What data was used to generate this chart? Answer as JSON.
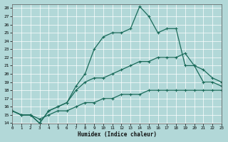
{
  "xlabel": "Humidex (Indice chaleur)",
  "bg_color": "#b2d8d8",
  "grid_color": "#c8e8e8",
  "line_color": "#1a6b5a",
  "xlim": [
    0,
    23
  ],
  "ylim": [
    14,
    28.5
  ],
  "xticks": [
    0,
    1,
    2,
    3,
    4,
    5,
    6,
    7,
    8,
    9,
    10,
    11,
    12,
    13,
    14,
    15,
    16,
    17,
    18,
    19,
    20,
    21,
    22,
    23
  ],
  "yticks": [
    14,
    15,
    16,
    17,
    18,
    19,
    20,
    21,
    22,
    23,
    24,
    25,
    26,
    27,
    28
  ],
  "line1_x": [
    0,
    1,
    2,
    3,
    4,
    5,
    6,
    7,
    8,
    9,
    10,
    11,
    12,
    13,
    14,
    15,
    16,
    17,
    18,
    19,
    20,
    21,
    22,
    23
  ],
  "line1_y": [
    15.5,
    15.0,
    15.0,
    14.0,
    15.5,
    16.0,
    16.5,
    18.5,
    20.0,
    23.0,
    24.5,
    25.0,
    25.0,
    25.5,
    28.2,
    27.0,
    25.0,
    25.5,
    25.5,
    21.0,
    21.0,
    19.0,
    19.0,
    18.5
  ],
  "line2_x": [
    0,
    1,
    2,
    3,
    4,
    5,
    6,
    7,
    8,
    9,
    10,
    11,
    12,
    13,
    14,
    15,
    16,
    17,
    18,
    19,
    20,
    21,
    22,
    23
  ],
  "line2_y": [
    15.5,
    15.0,
    15.0,
    14.0,
    15.5,
    16.0,
    16.5,
    18.0,
    19.0,
    19.5,
    19.5,
    20.0,
    20.5,
    21.0,
    21.5,
    21.5,
    22.0,
    22.0,
    22.0,
    22.5,
    21.0,
    20.5,
    19.5,
    19.0
  ],
  "line3_x": [
    0,
    1,
    2,
    3,
    4,
    5,
    6,
    7,
    8,
    9,
    10,
    11,
    12,
    13,
    14,
    15,
    16,
    17,
    18,
    19,
    20,
    21,
    22,
    23
  ],
  "line3_y": [
    15.5,
    15.0,
    15.0,
    14.5,
    15.0,
    15.5,
    15.5,
    16.0,
    16.5,
    16.5,
    17.0,
    17.0,
    17.5,
    17.5,
    17.5,
    18.0,
    18.0,
    18.0,
    18.0,
    18.0,
    18.0,
    18.0,
    18.0,
    18.0
  ]
}
